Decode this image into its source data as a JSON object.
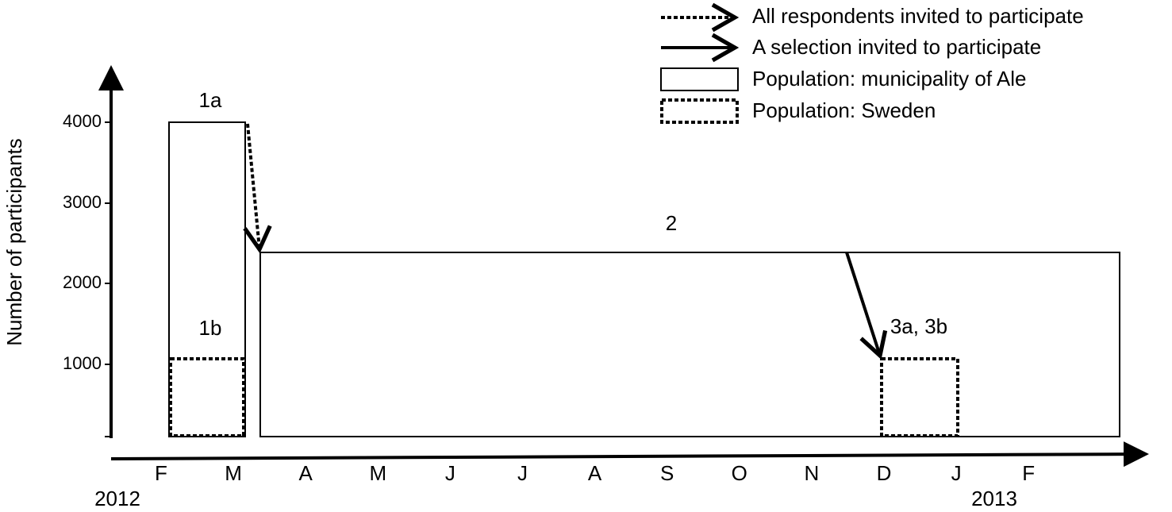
{
  "y_axis": {
    "label": "Number of participants",
    "ticks": [
      4000,
      3000,
      2000,
      1000
    ]
  },
  "x_axis": {
    "months": [
      "F",
      "M",
      "A",
      "M",
      "J",
      "J",
      "A",
      "S",
      "O",
      "N",
      "D",
      "J",
      "F"
    ],
    "years": [
      "2012",
      "2013"
    ]
  },
  "boxes": [
    {
      "label": "1a"
    },
    {
      "label": "1b"
    },
    {
      "label": "2"
    },
    {
      "label": "3a, 3b"
    }
  ],
  "legend": [
    "All respondents invited to participate",
    "A selection invited to participate",
    "Population: municipality of Ale",
    "Population: Sweden"
  ]
}
